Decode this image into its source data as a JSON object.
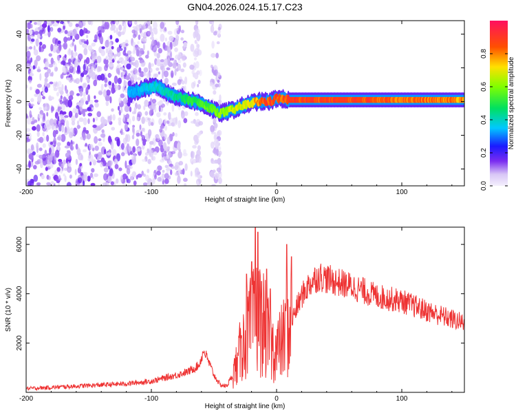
{
  "title": "GN04.2026.024.15.17.C23",
  "chart_data": [
    {
      "type": "heatmap",
      "xlabel": "Height of straight line (km)",
      "ylabel": "Frequency (Hz)",
      "xlim": [
        -200,
        150
      ],
      "ylim": [
        -50,
        48
      ],
      "xticks": [
        -200,
        -100,
        0,
        100
      ],
      "yticks": [
        -40,
        -20,
        0,
        20,
        40
      ],
      "colorbar": {
        "label": "Normalized spectral amplitude",
        "range": [
          0,
          1
        ],
        "ticks": [
          "0.0",
          "0.2",
          "0.4",
          "0.6",
          "0.8"
        ],
        "tick_values": [
          0.0,
          0.2,
          0.4,
          0.6,
          0.8
        ]
      },
      "ridge": {
        "description": "dominant frequency track",
        "x": [
          -115,
          -105,
          -95,
          -85,
          -75,
          -65,
          -55,
          -45,
          -35,
          -25,
          -15,
          -5,
          0,
          10,
          50,
          100,
          150
        ],
        "freq": [
          5,
          8,
          9,
          4,
          2,
          0,
          -3,
          -7,
          -5,
          -2,
          0,
          0,
          2,
          1,
          1,
          1,
          1
        ],
        "amplitude": [
          0.35,
          0.4,
          0.42,
          0.45,
          0.5,
          0.55,
          0.6,
          0.65,
          0.7,
          0.75,
          0.85,
          0.95,
          0.9,
          0.95,
          0.95,
          0.9,
          0.85
        ]
      }
    },
    {
      "type": "line",
      "xlabel": "Height of straight line (km)",
      "ylabel": "SNR (10 * v/v)",
      "xlim": [
        -200,
        150
      ],
      "ylim": [
        0,
        6700
      ],
      "xticks": [
        -200,
        -100,
        0,
        100
      ],
      "yticks": [
        2000,
        4000,
        6000
      ],
      "color": "#ee3333",
      "envelope": {
        "x": [
          -200,
          -160,
          -120,
          -100,
          -80,
          -70,
          -62,
          -58,
          -50,
          -45,
          -40,
          -35,
          -30,
          -25,
          -20,
          -15,
          -10,
          -5,
          0,
          5,
          10,
          15,
          20,
          25,
          30,
          35,
          40,
          60,
          80,
          100,
          120,
          150
        ],
        "y": [
          150,
          250,
          350,
          450,
          700,
          850,
          1100,
          1700,
          700,
          300,
          250,
          700,
          1500,
          2200,
          2700,
          3100,
          2700,
          1900,
          1700,
          2100,
          2600,
          3300,
          3900,
          4300,
          4600,
          4700,
          4600,
          4300,
          3900,
          3700,
          3300,
          2800
        ]
      },
      "spikes": [
        {
          "x": -31,
          "y": 1600
        },
        {
          "x": -28,
          "y": 2300
        },
        {
          "x": -24,
          "y": 4800
        },
        {
          "x": -20,
          "y": 5300
        },
        {
          "x": -17,
          "y": 6700
        },
        {
          "x": -15,
          "y": 6500
        },
        {
          "x": -12,
          "y": 4500
        },
        {
          "x": -8,
          "y": 5000
        },
        {
          "x": -5,
          "y": 4200
        },
        {
          "x": 8,
          "y": 6000
        },
        {
          "x": 12,
          "y": 5500
        }
      ]
    }
  ]
}
